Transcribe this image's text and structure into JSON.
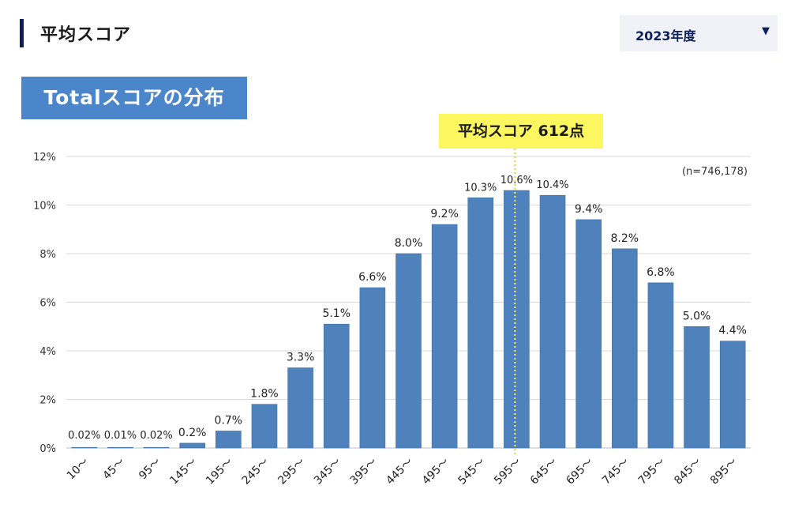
{
  "header": {
    "title": "平均スコア"
  },
  "year_select": {
    "value": "2023年度",
    "arrow": "▼"
  },
  "chart_heading": "Totalスコアの分布",
  "average_callout": "平均スコア 612点",
  "colors": {
    "bar": "#4f81bd",
    "heading_bg": "#4a86c9",
    "callout_bg": "#fdf75f",
    "accent": "#0b1f5c",
    "average_line": "#e7e23a"
  },
  "chart_data": {
    "type": "bar",
    "title": "Totalスコアの分布",
    "annotation": "(n=746,178)",
    "categories": [
      "10～",
      "45～",
      "95～",
      "145～",
      "195～",
      "245～",
      "295～",
      "345～",
      "395～",
      "445～",
      "495～",
      "545～",
      "595～",
      "645～",
      "695～",
      "745～",
      "795～",
      "845～",
      "895～"
    ],
    "values": [
      0.02,
      0.01,
      0.02,
      0.2,
      0.7,
      1.8,
      3.3,
      5.1,
      6.6,
      8.0,
      9.2,
      10.3,
      10.6,
      10.4,
      9.4,
      8.2,
      6.8,
      5.0,
      4.4
    ],
    "labels": [
      "0.02%",
      "0.01%",
      "0.02%",
      "0.2%",
      "0.7%",
      "1.8%",
      "3.3%",
      "5.1%",
      "6.6%",
      "8.0%",
      "9.2%",
      "10.3%",
      "10.6%",
      "10.4%",
      "9.4%",
      "8.2%",
      "6.8%",
      "5.0%",
      "4.4%"
    ],
    "yticks": [
      "0%",
      "2%",
      "4%",
      "6%",
      "8%",
      "10%",
      "12%"
    ],
    "ylim": [
      0,
      12
    ],
    "grid": true,
    "average_score": 612,
    "average_category_index": 12
  }
}
